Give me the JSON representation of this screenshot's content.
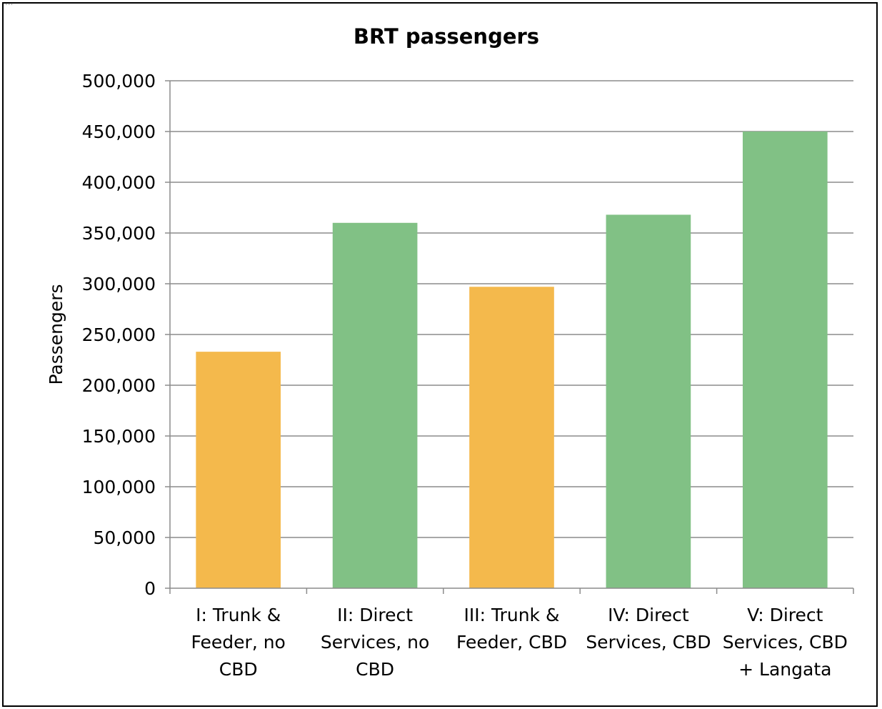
{
  "header": {
    "corner_text": "..."
  },
  "chart_data": {
    "type": "bar",
    "title": "BRT passengers",
    "xlabel": "",
    "ylabel": "Passengers",
    "ylim": [
      0,
      500000
    ],
    "yticks": [
      0,
      50000,
      100000,
      150000,
      200000,
      250000,
      300000,
      350000,
      400000,
      450000,
      500000
    ],
    "ytick_labels": [
      "0",
      "50,000",
      "100,000",
      "150,000",
      "200,000",
      "250,000",
      "300,000",
      "350,000",
      "400,000",
      "450,000",
      "500,000"
    ],
    "grid": true,
    "legend": "none",
    "categories": [
      [
        "I: Trunk &",
        "Feeder, no",
        "CBD"
      ],
      [
        "II: Direct",
        "Services, no",
        "CBD"
      ],
      [
        "III: Trunk &",
        "Feeder, CBD"
      ],
      [
        "IV: Direct",
        "Services, CBD"
      ],
      [
        "V: Direct",
        "Services, CBD",
        "+ Langata"
      ]
    ],
    "values": [
      233000,
      360000,
      297000,
      368000,
      450000
    ],
    "bar_colors": [
      "#F4B94C",
      "#81C185",
      "#F4B94C",
      "#81C185",
      "#81C185"
    ],
    "gridline_color": "#8C8C8C",
    "axis_color": "#8C8C8C",
    "text_color": "#000000"
  }
}
